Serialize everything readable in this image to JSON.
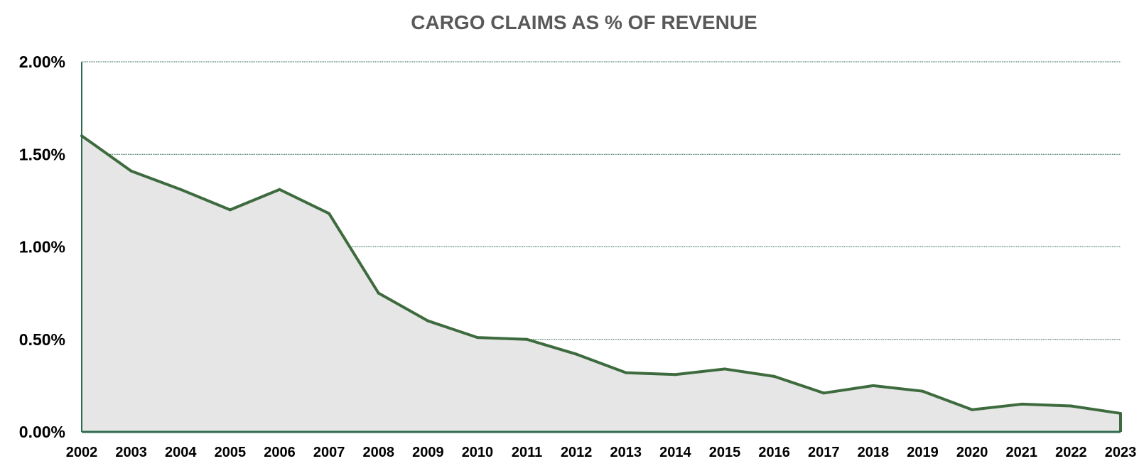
{
  "chart_data": {
    "type": "area",
    "title": "CARGO CLAIMS AS % OF REVENUE",
    "xlabel": "",
    "ylabel": "",
    "ylim": [
      0,
      2.0
    ],
    "grid": true,
    "yticks": [
      {
        "value": 0.0,
        "label": "0.00%"
      },
      {
        "value": 0.5,
        "label": "0.50%"
      },
      {
        "value": 1.0,
        "label": "1.00%"
      },
      {
        "value": 1.5,
        "label": "1.50%"
      },
      {
        "value": 2.0,
        "label": "2.00%"
      }
    ],
    "categories": [
      "2002",
      "2003",
      "2004",
      "2005",
      "2006",
      "2007",
      "2008",
      "2009",
      "2010",
      "2011",
      "2012",
      "2013",
      "2014",
      "2015",
      "2016",
      "2017",
      "2018",
      "2019",
      "2020",
      "2021",
      "2022",
      "2023"
    ],
    "series": [
      {
        "name": "Cargo claims as % of revenue",
        "values": [
          1.6,
          1.41,
          1.31,
          1.2,
          1.31,
          1.18,
          0.75,
          0.6,
          0.51,
          0.5,
          0.42,
          0.32,
          0.31,
          0.34,
          0.3,
          0.21,
          0.25,
          0.22,
          0.12,
          0.15,
          0.14,
          0.1
        ]
      }
    ],
    "colors": {
      "line": "#3e6b3e",
      "fill": "#e6e6e6",
      "grid": "#2f6b4f",
      "axis": "#2f6b4f",
      "title": "#595959"
    }
  }
}
